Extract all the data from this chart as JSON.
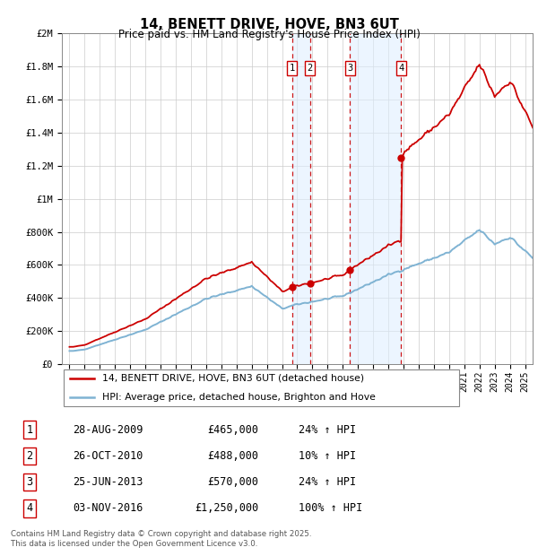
{
  "title": "14, BENETT DRIVE, HOVE, BN3 6UT",
  "subtitle": "Price paid vs. HM Land Registry's House Price Index (HPI)",
  "legend_property": "14, BENETT DRIVE, HOVE, BN3 6UT (detached house)",
  "legend_hpi": "HPI: Average price, detached house, Brighton and Hove",
  "footer": "Contains HM Land Registry data © Crown copyright and database right 2025.\nThis data is licensed under the Open Government Licence v3.0.",
  "transactions": [
    {
      "num": 1,
      "date": "28-AUG-2009",
      "price": "£465,000",
      "pct": "24%",
      "dir": "↑"
    },
    {
      "num": 2,
      "date": "26-OCT-2010",
      "price": "£488,000",
      "pct": "10%",
      "dir": "↑"
    },
    {
      "num": 3,
      "date": "25-JUN-2013",
      "price": "£570,000",
      "pct": "24%",
      "dir": "↑"
    },
    {
      "num": 4,
      "date": "03-NOV-2016",
      "price": "£1,250,000",
      "pct": "100%",
      "dir": "↑"
    }
  ],
  "transaction_years": [
    2009.66,
    2010.83,
    2013.48,
    2016.84
  ],
  "transaction_prices": [
    465000,
    488000,
    570000,
    1250000
  ],
  "property_color": "#cc0000",
  "hpi_color": "#7fb3d3",
  "vline_color": "#cc0000",
  "shade_color": "#ddeeff",
  "ylim_top": 2000000,
  "yticks": [
    0,
    200000,
    400000,
    600000,
    800000,
    1000000,
    1200000,
    1400000,
    1600000,
    1800000,
    2000000
  ],
  "ytick_labels": [
    "£0",
    "£200K",
    "£400K",
    "£600K",
    "£800K",
    "£1M",
    "£1.2M",
    "£1.4M",
    "£1.6M",
    "£1.8M",
    "£2M"
  ],
  "xlim_start": 1994.5,
  "xlim_end": 2025.5,
  "background_color": "#ffffff",
  "grid_color": "#cccccc"
}
